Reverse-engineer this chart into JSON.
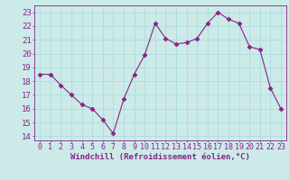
{
  "x": [
    0,
    1,
    2,
    3,
    4,
    5,
    6,
    7,
    8,
    9,
    10,
    11,
    12,
    13,
    14,
    15,
    16,
    17,
    18,
    19,
    20,
    21,
    22,
    23
  ],
  "y": [
    18.5,
    18.5,
    17.7,
    17.0,
    16.3,
    16.0,
    15.2,
    14.2,
    16.7,
    18.5,
    19.9,
    22.2,
    21.1,
    20.7,
    20.8,
    21.1,
    22.2,
    23.0,
    22.5,
    22.2,
    20.5,
    20.3,
    17.5,
    16.0
  ],
  "line_color": "#882288",
  "marker": "D",
  "marker_size": 2.5,
  "bg_color": "#cceae8",
  "grid_color": "#aadddd",
  "xlabel": "Windchill (Refroidissement éolien,°C)",
  "ylabel_ticks": [
    14,
    15,
    16,
    17,
    18,
    19,
    20,
    21,
    22,
    23
  ],
  "xlim": [
    -0.5,
    23.5
  ],
  "ylim": [
    13.7,
    23.5
  ],
  "tick_color": "#882288",
  "font_size_xlabel": 6.5,
  "font_size_ytick": 6.5,
  "font_size_xtick": 6.0
}
